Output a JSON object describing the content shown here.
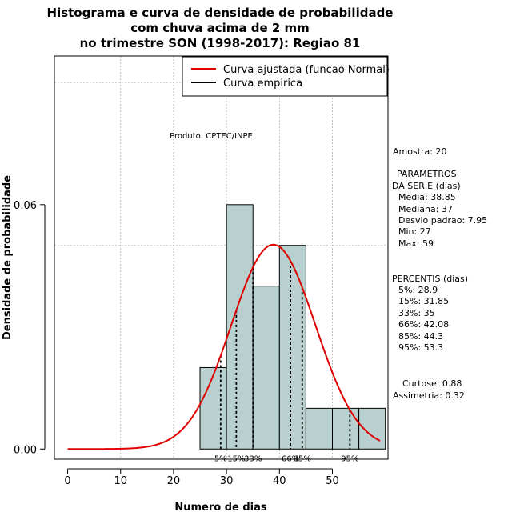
{
  "chart_data": {
    "type": "bar",
    "title_lines": [
      "Histograma e curva de densidade de probabilidade",
      "com chuva acima de 2 mm",
      "no trimestre SON (1998-2017): Regiao 81"
    ],
    "xlabel": "Numero de dias",
    "ylabel": "Densidade de probabilidade",
    "xlim": [
      -2.5,
      60.5
    ],
    "ylim": [
      -0.0025,
      0.0965
    ],
    "x_ticks": [
      0,
      10,
      20,
      30,
      40,
      50
    ],
    "y_ticks": [
      0.0,
      0.06
    ],
    "y_tick_labels": [
      "0.00",
      "0.06"
    ],
    "histogram": {
      "bin_edges": [
        25,
        30,
        35,
        40,
        45,
        50,
        55,
        60
      ],
      "densities": [
        0.02,
        0.06,
        0.04,
        0.05,
        0.01,
        0.01,
        0.01
      ],
      "fill_color": "#b8d0cf"
    },
    "fitted_curve": {
      "name": "Curva ajustada (funcao Normal)",
      "distribution": "normal",
      "mean": 38.85,
      "sd": 7.95,
      "x_range": [
        0,
        59
      ],
      "color": "#e00000"
    },
    "empirical_curve": {
      "name": "Curva empirica",
      "color": "#000000"
    },
    "percentile_lines": [
      {
        "label": "5%",
        "value": 28.9
      },
      {
        "label": "15%",
        "value": 31.85
      },
      {
        "label": "33%",
        "value": 35
      },
      {
        "label": "66%",
        "value": 42.08
      },
      {
        "label": "85%",
        "value": 44.3
      },
      {
        "label": "95%",
        "value": 53.3
      }
    ],
    "hgrid_values": [
      0.05,
      0.09
    ],
    "vgrid_values": [
      10,
      20,
      30,
      40,
      50
    ],
    "legend_position": "top-right",
    "product_note": "Produto: CPTEC/INPE",
    "side_panel": {
      "sample": "Amostra: 20",
      "params_header": [
        "PARAMETROS",
        "DA SERIE (dias)"
      ],
      "params": [
        "Media: 38.85",
        "Mediana: 37",
        "Desvio padrao: 7.95",
        "Min: 27",
        "Max: 59"
      ],
      "percentiles_header": "PERCENTIS (dias)",
      "percentiles": [
        "5%: 28.9",
        "15%: 31.85",
        "33%: 35",
        "66%: 42.08",
        "85%: 44.3",
        "95%: 53.3"
      ],
      "shape_stats": [
        "Curtose: 0.88",
        "Assimetria: 0.32"
      ]
    }
  }
}
